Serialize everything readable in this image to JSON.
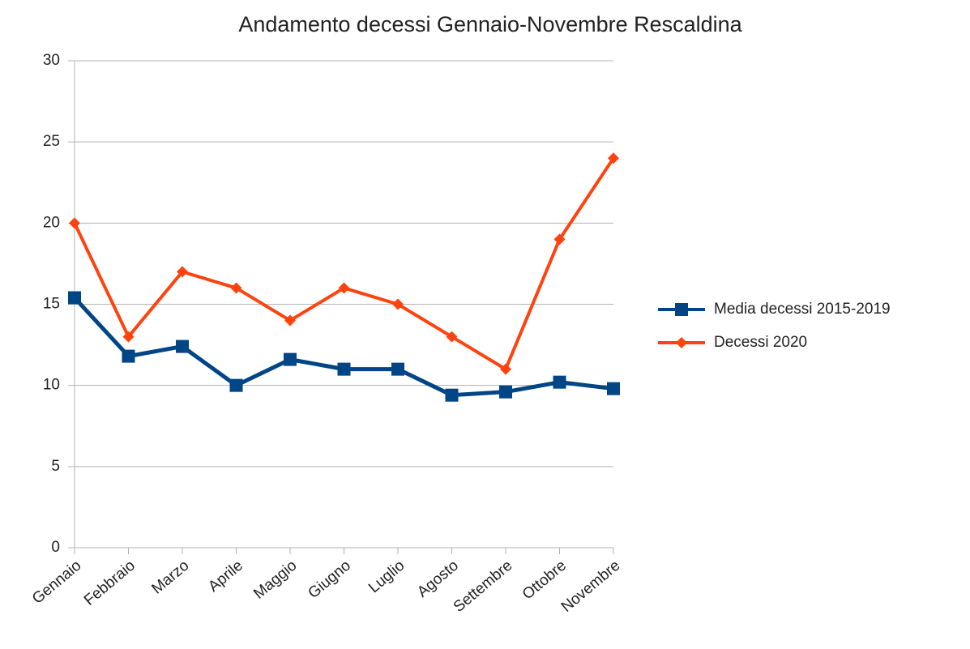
{
  "chart_data": {
    "type": "line",
    "title": "Andamento decessi Gennaio-Novembre Rescaldina",
    "categories": [
      "Gennaio",
      "Febbraio",
      "Marzo",
      "Aprile",
      "Maggio",
      "Giugno",
      "Luglio",
      "Agosto",
      "Settembre",
      "Ottobre",
      "Novembre"
    ],
    "series": [
      {
        "name": "Media decessi 2015-2019",
        "color": "#004586",
        "marker": "square",
        "values": [
          15.4,
          11.8,
          12.4,
          10,
          11.6,
          11,
          11,
          9.4,
          9.6,
          10.2,
          9.8
        ]
      },
      {
        "name": "Decessi 2020",
        "color": "#ff420e",
        "marker": "diamond",
        "values": [
          20,
          13,
          17,
          16,
          14,
          16,
          15,
          13,
          11,
          19,
          24
        ]
      }
    ],
    "ylim": [
      0,
      30
    ],
    "yticks": [
      0,
      5,
      10,
      15,
      20,
      25,
      30
    ],
    "grid": true,
    "legend": "right"
  }
}
